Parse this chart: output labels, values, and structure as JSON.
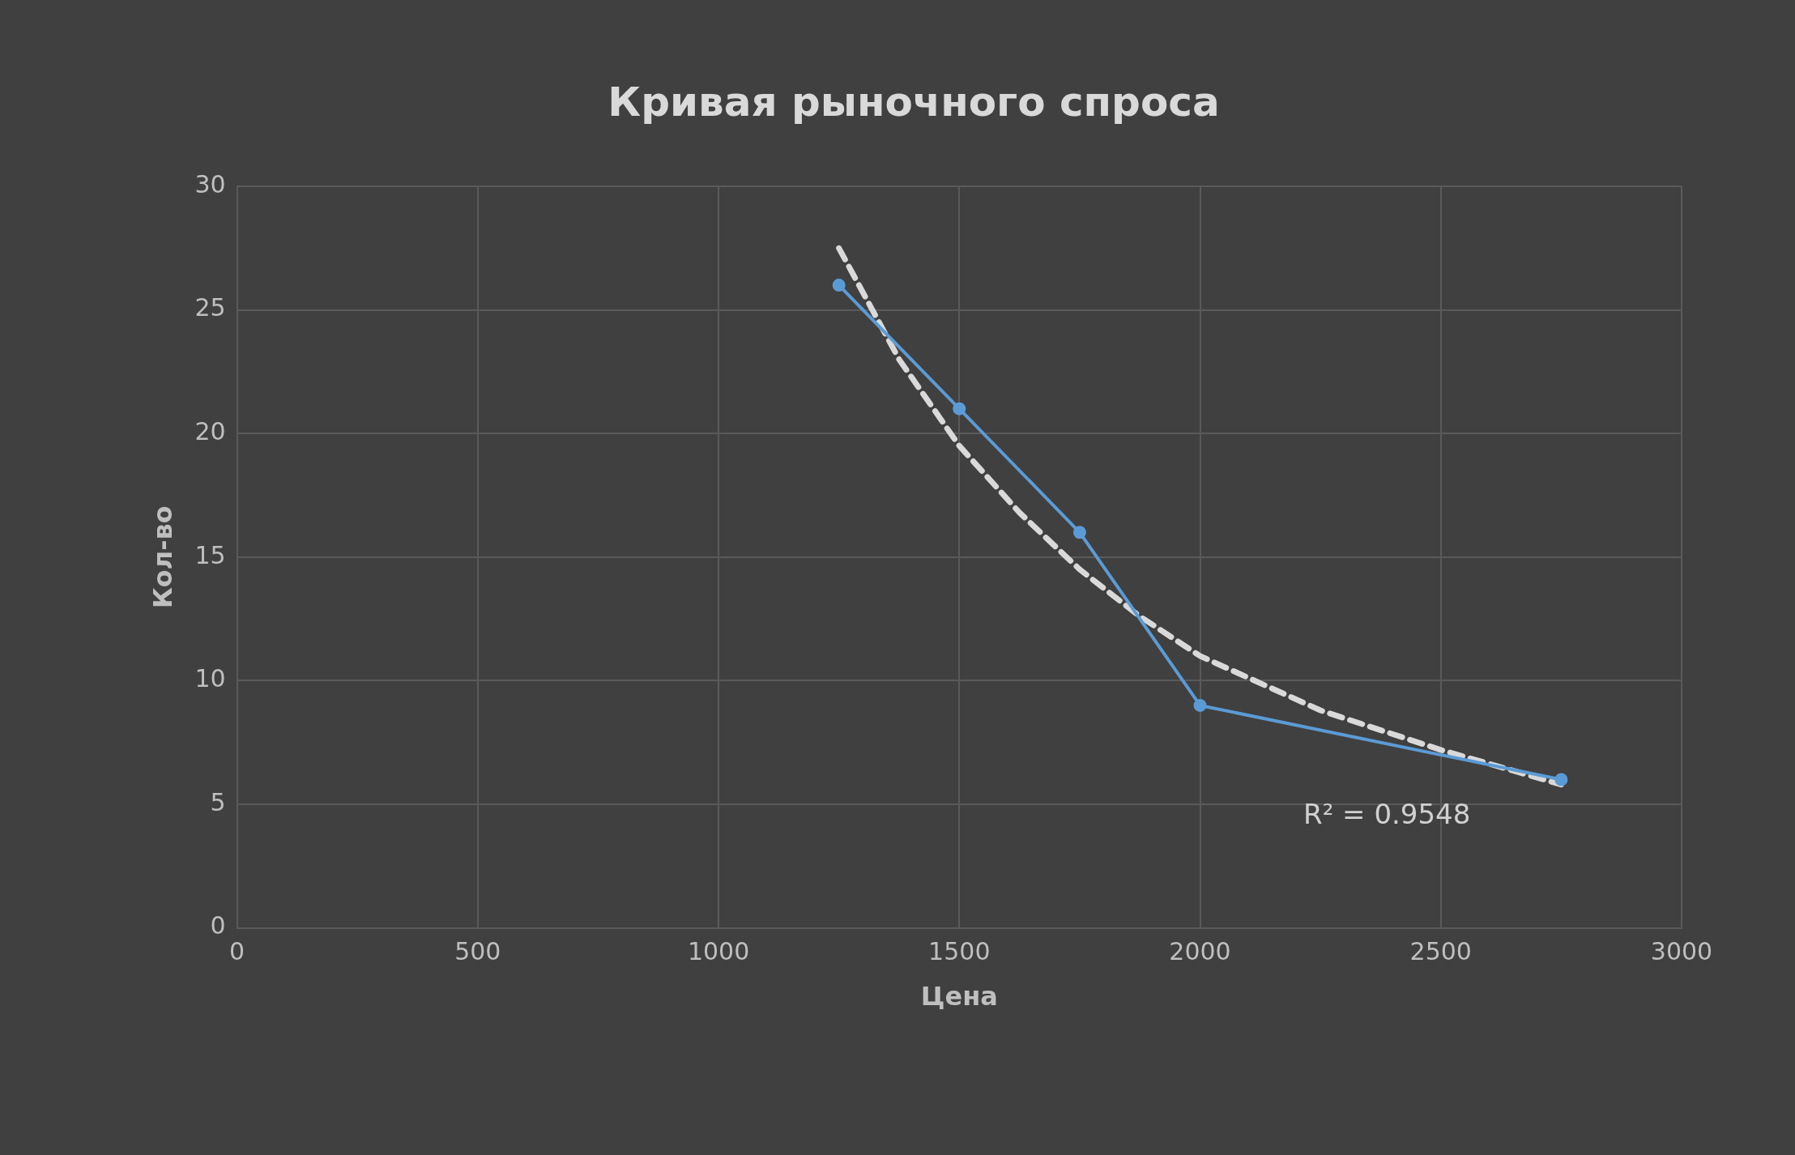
{
  "chart_data": {
    "type": "scatter",
    "title": "Кривая рыночного спроса",
    "xlabel": "Цена",
    "ylabel": "Кол-во",
    "series": [
      {
        "type": "line",
        "color": "#5b9bd5",
        "marker": "circle",
        "line_style": "solid",
        "x": [
          1250,
          1500,
          1750,
          2000,
          2750
        ],
        "values": [
          26,
          21,
          16,
          9,
          6
        ]
      },
      {
        "type": "line",
        "color": "#d9d9d9",
        "marker": "none",
        "line_style": "dashed",
        "x": [
          1250,
          1375,
          1500,
          1625,
          1750,
          1875,
          2000,
          2250,
          2500,
          2750
        ],
        "values": [
          27.5,
          23,
          19.5,
          16.8,
          14.5,
          12.6,
          11,
          8.8,
          7.2,
          5.8
        ]
      }
    ],
    "annotations": [
      "R² = 0.9548"
    ],
    "xlim": [
      0,
      3000
    ],
    "xticks": [
      0,
      500,
      1000,
      1500,
      2000,
      2500,
      3000
    ],
    "ylim": [
      0,
      30
    ],
    "yticks": [
      0,
      5,
      10,
      15,
      20,
      25,
      30
    ],
    "grid": true,
    "legend": false
  }
}
